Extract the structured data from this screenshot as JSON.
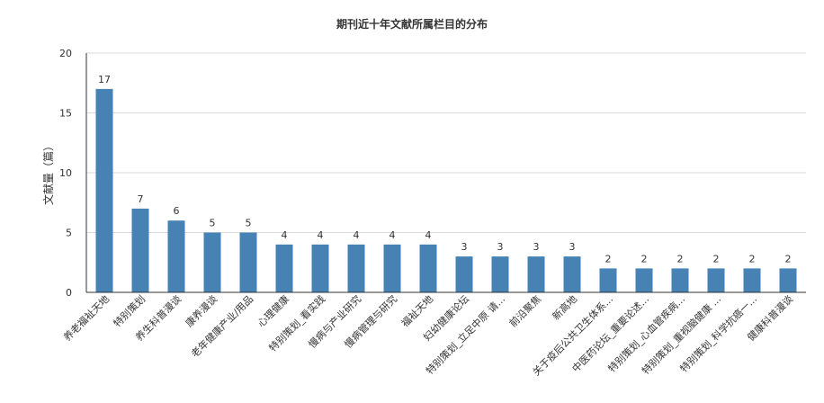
{
  "chart_data": {
    "type": "bar",
    "title": "期刊近十年文献所属栏目的分布",
    "xlabel": "",
    "ylabel": "文献量（篇）",
    "ylim": [
      0,
      20
    ],
    "yticks": [
      0,
      5,
      10,
      15,
      20
    ],
    "grid": true,
    "color": "#4682B4",
    "categories": [
      "养老福祉天地",
      "特别策划",
      "养生科普漫谈",
      "康养漫谈",
      "老年健康产业/用品",
      "心理健康",
      "特别策划_看实践",
      "慢病与产业研究",
      "慢病管理与研究",
      "福祉天地",
      "妇幼健康论坛",
      "特别策划_立足中原 请...",
      "前沿聚焦",
      "新高地",
      "关于疫后公共卫生体系...",
      "中医药论坛_重要论述...",
      "特别策划_心血管疾病...",
      "特别策划_重视脑健康 ...",
      "特别策划_科学抗癌一...",
      "健康科普漫谈"
    ],
    "values": [
      17,
      7,
      6,
      5,
      5,
      4,
      4,
      4,
      4,
      4,
      3,
      3,
      3,
      3,
      2,
      2,
      2,
      2,
      2,
      2
    ]
  }
}
